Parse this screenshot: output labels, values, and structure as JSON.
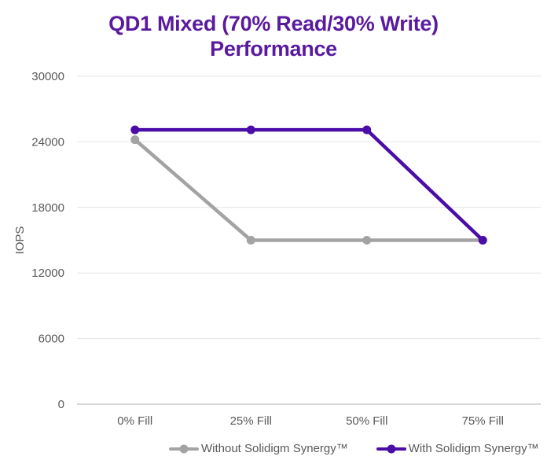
{
  "chart_data": {
    "type": "line",
    "title": "QD1 Mixed (70% Read/30% Write) Performance",
    "title_lines": [
      "QD1 Mixed (70% Read/30% Write)",
      "Performance"
    ],
    "title_color": "#5a1a9e",
    "ylabel": "IOPS",
    "xlabel": "",
    "ylim": [
      0,
      30000
    ],
    "ytick_step": 6000,
    "ytick_labels": [
      "0",
      "6000",
      "12000",
      "18000",
      "24000",
      "30000"
    ],
    "categories": [
      "0% Fill",
      "25% Fill",
      "50% Fill",
      "75% Fill"
    ],
    "series": [
      {
        "name": "Without Solidigm Synergy™",
        "color": "#a3a3a3",
        "values": [
          24200,
          15000,
          15000,
          15000
        ]
      },
      {
        "name": "With Solidigm Synergy™",
        "color": "#4a0da8",
        "values": [
          25100,
          25100,
          25100,
          15000
        ]
      }
    ],
    "grid": "horizontal",
    "legend_position": "bottom",
    "axis_text_color": "#595959",
    "gridline_color": "#e4e4e4",
    "axisline_color": "#cccccc",
    "background": "#ffffff"
  }
}
